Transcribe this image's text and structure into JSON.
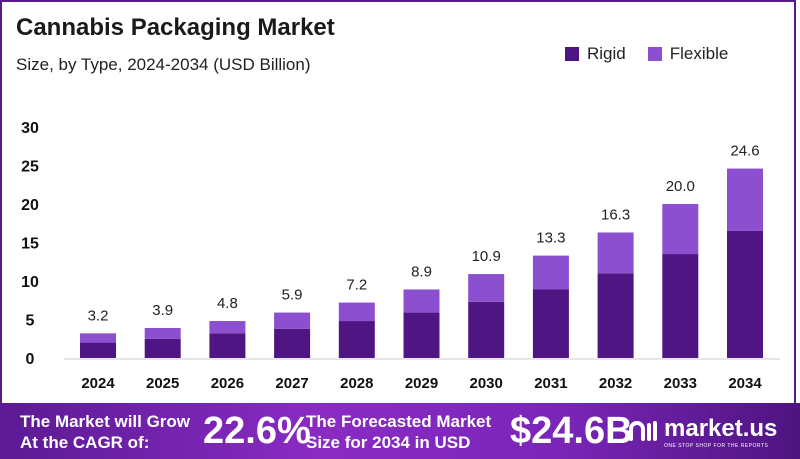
{
  "chart_data": {
    "type": "bar",
    "stacked": true,
    "title": "Cannabis Packaging Market",
    "subtitle": "Size, by Type, 2024-2034 (USD Billion)",
    "categories": [
      "2024",
      "2025",
      "2026",
      "2027",
      "2028",
      "2029",
      "2030",
      "2031",
      "2032",
      "2033",
      "2034"
    ],
    "series": [
      {
        "name": "Rigid",
        "color": "#4e1583",
        "values": [
          2.0,
          2.5,
          3.2,
          3.8,
          4.8,
          5.9,
          7.3,
          8.9,
          11.0,
          13.5,
          16.5
        ]
      },
      {
        "name": "Flexible",
        "color": "#8c4fcf",
        "values": [
          1.2,
          1.4,
          1.6,
          2.1,
          2.4,
          3.0,
          3.6,
          4.4,
          5.3,
          6.5,
          8.1
        ]
      }
    ],
    "totals": [
      "3.2",
      "3.9",
      "4.8",
      "5.9",
      "7.2",
      "8.9",
      "10.9",
      "13.3",
      "16.3",
      "20.0",
      "24.6"
    ],
    "ylim": [
      0,
      30
    ],
    "yticks": [
      "0",
      "5",
      "10",
      "15",
      "20",
      "25",
      "30"
    ],
    "grid": false,
    "legend_position": "top-right"
  },
  "footer": {
    "cagr_text_1": "The Market will Grow",
    "cagr_text_2": "At the CAGR of:",
    "cagr_value": "22.6%",
    "forecast_text_1": "The Forecasted Market",
    "forecast_text_2": "Size for 2034 in USD",
    "forecast_value": "$24.6B",
    "brand": "market.us",
    "brand_tagline": "ONE STOP SHOP FOR THE REPORTS"
  }
}
